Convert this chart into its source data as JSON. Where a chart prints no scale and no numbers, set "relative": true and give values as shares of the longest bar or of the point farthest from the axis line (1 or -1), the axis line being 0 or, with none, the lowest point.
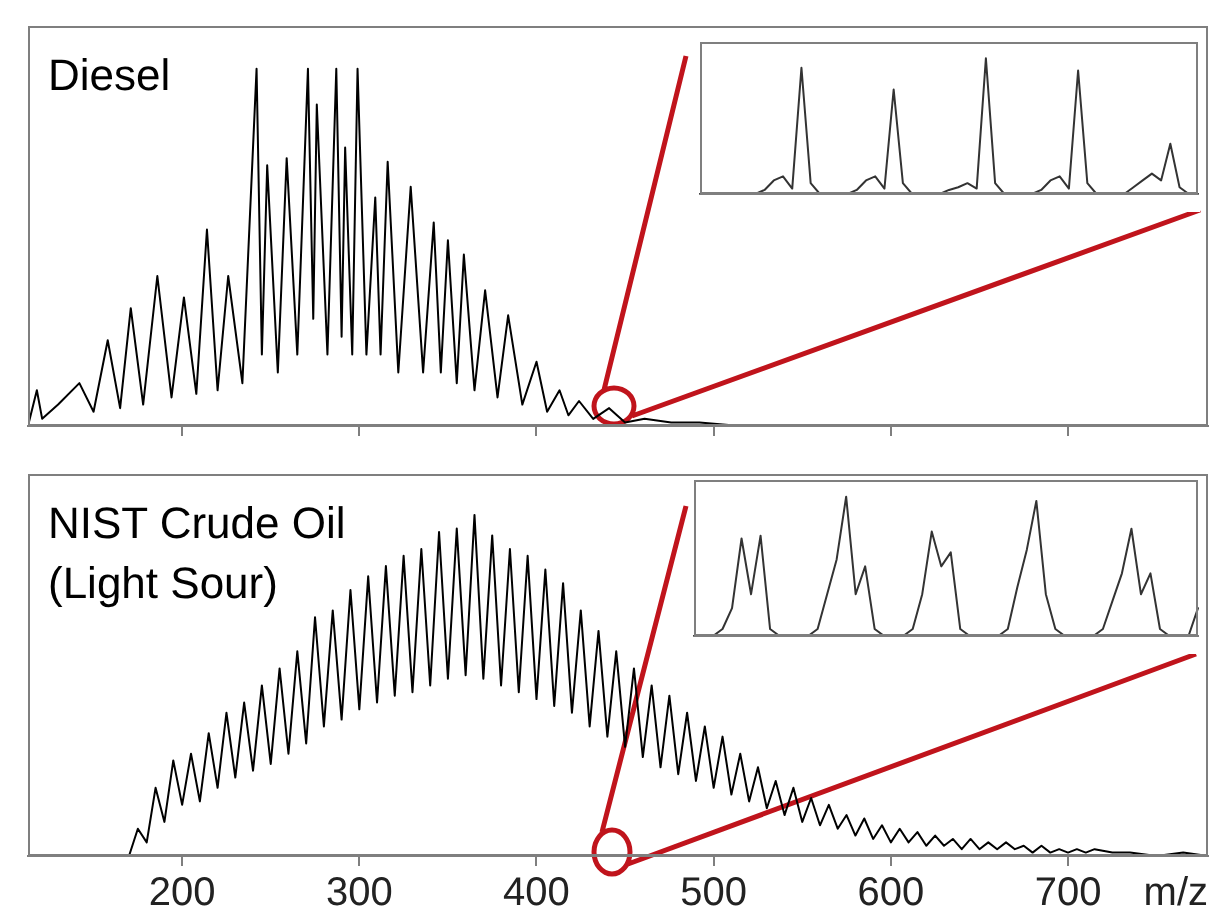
{
  "chart_data": [
    {
      "type": "line",
      "title": "Diesel",
      "relative": true,
      "color": "#000000",
      "xlim": [
        113,
        779
      ],
      "xticks": [
        200,
        300,
        400,
        500,
        600,
        700
      ],
      "tick_labels": false,
      "x": [
        113,
        118,
        121,
        130,
        142,
        150,
        158,
        165,
        171,
        178,
        186,
        194,
        201,
        208,
        214,
        220,
        226,
        234,
        242,
        245,
        248,
        254,
        259,
        265,
        271,
        274,
        276,
        282,
        287,
        290,
        292,
        296,
        299,
        304,
        309,
        312,
        316,
        322,
        329,
        336,
        342,
        346,
        350,
        355,
        359,
        365,
        371,
        378,
        384,
        392,
        400,
        406,
        413,
        418,
        424,
        432,
        441,
        450,
        461,
        476,
        492,
        515,
        536,
        560,
        600,
        650,
        700,
        779
      ],
      "values": [
        0,
        0.1,
        0.02,
        0.06,
        0.12,
        0.04,
        0.24,
        0.05,
        0.33,
        0.06,
        0.42,
        0.08,
        0.36,
        0.09,
        0.55,
        0.1,
        0.42,
        0.12,
        1,
        0.2,
        0.73,
        0.15,
        0.75,
        0.2,
        1,
        0.3,
        0.9,
        0.2,
        1,
        0.25,
        0.78,
        0.2,
        1,
        0.2,
        0.64,
        0.2,
        0.74,
        0.15,
        0.67,
        0.15,
        0.57,
        0.15,
        0.52,
        0.12,
        0.48,
        0.1,
        0.38,
        0.08,
        0.31,
        0.06,
        0.18,
        0.04,
        0.1,
        0.03,
        0.07,
        0.02,
        0.05,
        0.01,
        0.02,
        0.01,
        0.01,
        0,
        0,
        0,
        0,
        0,
        0,
        0
      ]
    },
    {
      "type": "line",
      "title": "NIST Crude Oil (Light Sour)",
      "xlabel": "m/z",
      "relative": true,
      "color": "#000000",
      "xlim": [
        113,
        779
      ],
      "xticks": [
        200,
        300,
        400,
        500,
        600,
        700
      ],
      "tick_labels": "x",
      "x": [
        170,
        175,
        180,
        185,
        190,
        195,
        200,
        205,
        210,
        215,
        220,
        225,
        230,
        235,
        240,
        245,
        250,
        255,
        260,
        265,
        270,
        275,
        280,
        285,
        290,
        295,
        300,
        305,
        310,
        315,
        320,
        325,
        330,
        335,
        340,
        345,
        350,
        355,
        360,
        365,
        370,
        375,
        380,
        385,
        390,
        395,
        400,
        405,
        410,
        415,
        420,
        425,
        430,
        435,
        440,
        445,
        450,
        455,
        460,
        465,
        470,
        475,
        480,
        485,
        490,
        495,
        500,
        505,
        510,
        515,
        520,
        525,
        530,
        535,
        540,
        545,
        550,
        555,
        560,
        565,
        570,
        575,
        580,
        585,
        590,
        595,
        600,
        605,
        610,
        615,
        620,
        625,
        630,
        635,
        640,
        645,
        650,
        655,
        660,
        665,
        670,
        675,
        680,
        685,
        690,
        695,
        700,
        705,
        710,
        715,
        725,
        735,
        750,
        765,
        779
      ],
      "values": [
        0,
        0.08,
        0.04,
        0.2,
        0.1,
        0.28,
        0.15,
        0.3,
        0.16,
        0.36,
        0.2,
        0.42,
        0.23,
        0.45,
        0.25,
        0.5,
        0.27,
        0.55,
        0.3,
        0.6,
        0.33,
        0.7,
        0.38,
        0.72,
        0.4,
        0.78,
        0.43,
        0.82,
        0.45,
        0.85,
        0.47,
        0.88,
        0.48,
        0.9,
        0.5,
        0.95,
        0.52,
        0.96,
        0.53,
        1,
        0.52,
        0.94,
        0.5,
        0.9,
        0.48,
        0.88,
        0.46,
        0.84,
        0.44,
        0.8,
        0.42,
        0.72,
        0.38,
        0.66,
        0.35,
        0.6,
        0.32,
        0.55,
        0.29,
        0.5,
        0.26,
        0.47,
        0.24,
        0.42,
        0.22,
        0.38,
        0.2,
        0.35,
        0.18,
        0.3,
        0.16,
        0.26,
        0.14,
        0.22,
        0.12,
        0.2,
        0.1,
        0.17,
        0.09,
        0.15,
        0.08,
        0.12,
        0.06,
        0.11,
        0.05,
        0.09,
        0.04,
        0.08,
        0.04,
        0.07,
        0.03,
        0.06,
        0.03,
        0.05,
        0.02,
        0.05,
        0.02,
        0.04,
        0.02,
        0.04,
        0.02,
        0.03,
        0.01,
        0.03,
        0.01,
        0.02,
        0.01,
        0.02,
        0.01,
        0.02,
        0.01,
        0.01,
        0,
        0.01,
        0
      ]
    },
    {
      "type": "line",
      "relative": true,
      "color": "#333333",
      "tick_labels": false,
      "categories": [
        null,
        null,
        null,
        null,
        null,
        null,
        null,
        null,
        null,
        null,
        null,
        null,
        null,
        null,
        null,
        null,
        null,
        null,
        null,
        null,
        null,
        null,
        null,
        null,
        null,
        null,
        null,
        null,
        null,
        null,
        null,
        null,
        null,
        null,
        null,
        null,
        null,
        null,
        null,
        null,
        null,
        null,
        null,
        null,
        null,
        null,
        null,
        null,
        null,
        null,
        null,
        null,
        null,
        null,
        null
      ],
      "values": [
        0,
        0,
        0,
        0,
        0,
        0,
        0,
        0.03,
        0.1,
        0.13,
        0.04,
        0.93,
        0.08,
        0,
        0,
        0,
        0,
        0.03,
        0.1,
        0.13,
        0.04,
        0.77,
        0.08,
        0,
        0,
        0,
        0,
        0.03,
        0.05,
        0.08,
        0.04,
        1,
        0.08,
        0,
        0,
        0,
        0,
        0.03,
        0.1,
        0.13,
        0.04,
        0.91,
        0.08,
        0,
        0,
        0,
        0,
        0.05,
        0.1,
        0.15,
        0.1,
        0.37,
        0.05,
        0,
        0
      ]
    },
    {
      "type": "line",
      "relative": true,
      "color": "#333333",
      "tick_labels": false,
      "categories": [
        null,
        null,
        null,
        null,
        null,
        null,
        null,
        null,
        null,
        null,
        null,
        null,
        null,
        null,
        null,
        null,
        null,
        null,
        null,
        null,
        null,
        null,
        null,
        null,
        null,
        null,
        null,
        null,
        null,
        null,
        null,
        null,
        null,
        null,
        null,
        null,
        null,
        null,
        null,
        null,
        null,
        null,
        null,
        null,
        null,
        null,
        null,
        null,
        null,
        null,
        null,
        null,
        null,
        null
      ],
      "values": [
        0,
        0,
        0,
        0.05,
        0.2,
        0.7,
        0.3,
        0.72,
        0.05,
        0,
        0,
        0,
        0,
        0.05,
        0.3,
        0.55,
        1,
        0.3,
        0.5,
        0.05,
        0,
        0,
        0,
        0.05,
        0.3,
        0.75,
        0.5,
        0.6,
        0.05,
        0,
        0,
        0,
        0,
        0.05,
        0.35,
        0.62,
        0.97,
        0.3,
        0.05,
        0,
        0,
        0,
        0,
        0.05,
        0.25,
        0.45,
        0.77,
        0.3,
        0.45,
        0.05,
        0,
        0,
        0,
        0.2
      ]
    }
  ]
}
